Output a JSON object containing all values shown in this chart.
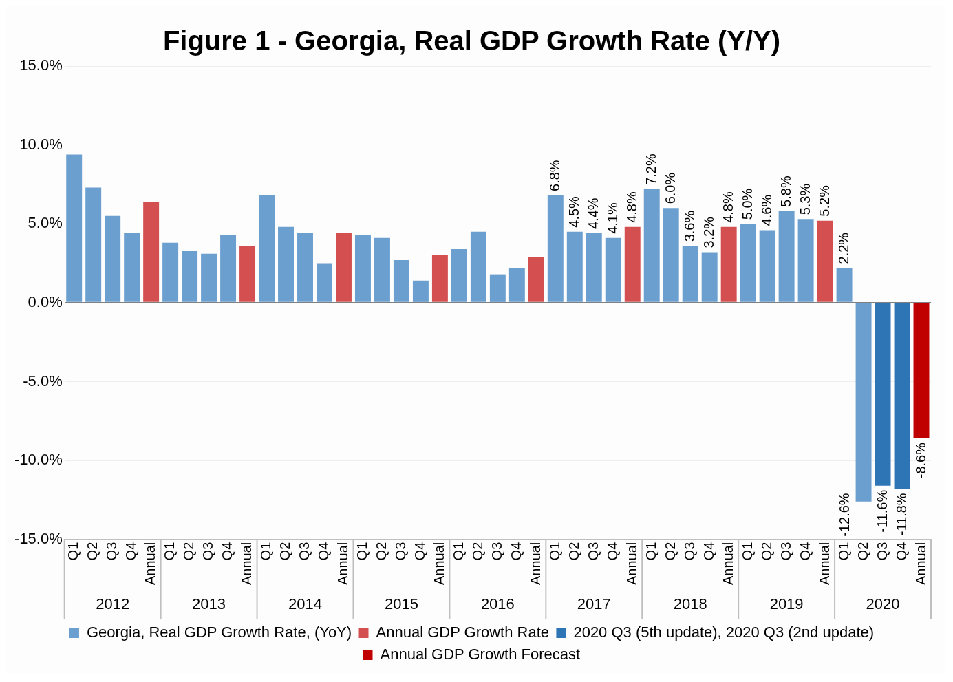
{
  "chart_data": {
    "type": "bar",
    "title": "Figure 1 - Georgia, Real GDP Growth Rate (Y/Y)",
    "categories": [
      "Q1",
      "Q2",
      "Q3",
      "Q4",
      "Annual",
      "Q1",
      "Q2",
      "Q3",
      "Q4",
      "Annual",
      "Q1",
      "Q2",
      "Q3",
      "Q4",
      "Annual",
      "Q1",
      "Q2",
      "Q3",
      "Q4",
      "Annual",
      "Q1",
      "Q2",
      "Q3",
      "Q4",
      "Annual",
      "Q1",
      "Q2",
      "Q3",
      "Q4",
      "Annual",
      "Q1",
      "Q2",
      "Q3",
      "Q4",
      "Annual",
      "Q1",
      "Q2",
      "Q3",
      "Q4",
      "Annual",
      "Q1",
      "Q2",
      "Q3",
      "Q4",
      "Annual"
    ],
    "annotations": [
      "2012",
      "2013",
      "2014",
      "2015",
      "2016",
      "2017",
      "2018",
      "2019",
      "2020"
    ],
    "series": [
      {
        "name": "Georgia, Real GDP Growth Rate, (YoY)",
        "color": "#6a9fcf",
        "values": [
          9.4,
          7.3,
          5.5,
          4.4,
          null,
          3.8,
          3.3,
          3.1,
          4.3,
          null,
          6.8,
          4.8,
          4.4,
          2.5,
          null,
          4.3,
          4.1,
          2.7,
          1.4,
          null,
          3.4,
          4.5,
          1.8,
          2.2,
          null,
          6.8,
          4.5,
          4.4,
          4.1,
          null,
          7.2,
          6.0,
          3.6,
          3.2,
          null,
          5.0,
          4.6,
          5.8,
          5.3,
          null,
          2.2,
          -12.6,
          null,
          null,
          null
        ],
        "value_labels": [
          null,
          null,
          null,
          null,
          null,
          null,
          null,
          null,
          null,
          null,
          null,
          null,
          null,
          null,
          null,
          null,
          null,
          null,
          null,
          null,
          null,
          null,
          null,
          null,
          null,
          "6.8%",
          "4.5%",
          "4.4%",
          "4.1%",
          null,
          "7.2%",
          "6.0%",
          "3.6%",
          "3.2%",
          null,
          "5.0%",
          "4.6%",
          "5.8%",
          "5.3%",
          null,
          "2.2%",
          "-12.6%",
          null,
          null,
          null
        ]
      },
      {
        "name": "Annual GDP Growth Rate",
        "color": "#d45050",
        "values": [
          null,
          null,
          null,
          null,
          6.4,
          null,
          null,
          null,
          null,
          3.6,
          null,
          null,
          null,
          null,
          4.4,
          null,
          null,
          null,
          null,
          3.0,
          null,
          null,
          null,
          null,
          2.9,
          null,
          null,
          null,
          null,
          4.8,
          null,
          null,
          null,
          null,
          4.8,
          null,
          null,
          null,
          null,
          5.2,
          null,
          null,
          null,
          null,
          null
        ],
        "value_labels": [
          null,
          null,
          null,
          null,
          null,
          null,
          null,
          null,
          null,
          null,
          null,
          null,
          null,
          null,
          null,
          null,
          null,
          null,
          null,
          null,
          null,
          null,
          null,
          null,
          null,
          null,
          null,
          null,
          null,
          "4.8%",
          null,
          null,
          null,
          null,
          "4.8%",
          null,
          null,
          null,
          null,
          "5.2%",
          null,
          null,
          null,
          null,
          null
        ]
      },
      {
        "name": "2020 Q3 (5th update), 2020 Q3 (2nd update)",
        "color": "#2e75b6",
        "values": [
          null,
          null,
          null,
          null,
          null,
          null,
          null,
          null,
          null,
          null,
          null,
          null,
          null,
          null,
          null,
          null,
          null,
          null,
          null,
          null,
          null,
          null,
          null,
          null,
          null,
          null,
          null,
          null,
          null,
          null,
          null,
          null,
          null,
          null,
          null,
          null,
          null,
          null,
          null,
          null,
          null,
          null,
          -11.6,
          -11.8,
          null
        ],
        "value_labels": [
          null,
          null,
          null,
          null,
          null,
          null,
          null,
          null,
          null,
          null,
          null,
          null,
          null,
          null,
          null,
          null,
          null,
          null,
          null,
          null,
          null,
          null,
          null,
          null,
          null,
          null,
          null,
          null,
          null,
          null,
          null,
          null,
          null,
          null,
          null,
          null,
          null,
          null,
          null,
          null,
          null,
          null,
          "-11.6%",
          "-11.8%",
          null
        ]
      },
      {
        "name": "Annual GDP Growth Forecast",
        "color": "#c00000",
        "values": [
          null,
          null,
          null,
          null,
          null,
          null,
          null,
          null,
          null,
          null,
          null,
          null,
          null,
          null,
          null,
          null,
          null,
          null,
          null,
          null,
          null,
          null,
          null,
          null,
          null,
          null,
          null,
          null,
          null,
          null,
          null,
          null,
          null,
          null,
          null,
          null,
          null,
          null,
          null,
          null,
          null,
          null,
          null,
          null,
          -8.6
        ],
        "value_labels": [
          null,
          null,
          null,
          null,
          null,
          null,
          null,
          null,
          null,
          null,
          null,
          null,
          null,
          null,
          null,
          null,
          null,
          null,
          null,
          null,
          null,
          null,
          null,
          null,
          null,
          null,
          null,
          null,
          null,
          null,
          null,
          null,
          null,
          null,
          null,
          null,
          null,
          null,
          null,
          null,
          null,
          null,
          null,
          null,
          "-8.6%"
        ]
      }
    ],
    "ylim": [
      -15,
      15
    ],
    "yticks": [
      {
        "value": -15,
        "label": "-15.0%"
      },
      {
        "value": -10,
        "label": "-10.0%"
      },
      {
        "value": -5,
        "label": "-5.0%"
      },
      {
        "value": 0,
        "label": "0.0%"
      },
      {
        "value": 5,
        "label": "5.0%"
      },
      {
        "value": 10,
        "label": "10.0%"
      },
      {
        "value": 15,
        "label": "15.0%"
      }
    ],
    "grid": "y",
    "legend": "bottom"
  }
}
